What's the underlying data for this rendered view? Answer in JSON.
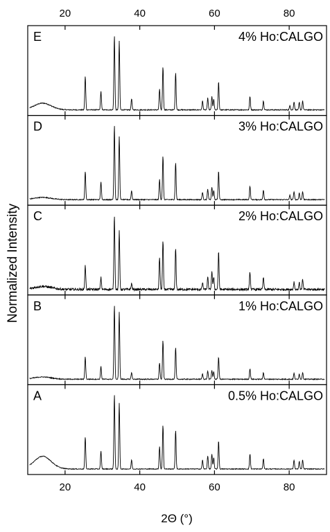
{
  "chart_data": {
    "type": "line",
    "xlabel": "2Θ (°)",
    "ylabel": "Normalized Intensity",
    "xlim": [
      10,
      90
    ],
    "xticks": [
      20,
      40,
      60,
      80
    ],
    "xtick_labels": [
      "20",
      "40",
      "60",
      "80"
    ],
    "grid": false,
    "line_color": "#000000",
    "panels": [
      {
        "letter": "E",
        "label": "4% Ho:CALGO",
        "hump": 0.09,
        "noise": 0.012,
        "peaks": [
          [
            25.4,
            0.45
          ],
          [
            29.6,
            0.25
          ],
          [
            33.2,
            1.0
          ],
          [
            34.5,
            0.92
          ],
          [
            37.8,
            0.15
          ],
          [
            45.3,
            0.28
          ],
          [
            46.2,
            0.58
          ],
          [
            49.6,
            0.5
          ],
          [
            56.8,
            0.12
          ],
          [
            58.2,
            0.16
          ],
          [
            59.3,
            0.18
          ],
          [
            59.8,
            0.14
          ],
          [
            61.1,
            0.38
          ],
          [
            69.5,
            0.18
          ],
          [
            73.1,
            0.12
          ],
          [
            80.2,
            0.06
          ],
          [
            81.3,
            0.11
          ],
          [
            82.7,
            0.1
          ],
          [
            83.6,
            0.12
          ]
        ]
      },
      {
        "letter": "D",
        "label": "3% Ho:CALGO",
        "hump": 0.03,
        "noise": 0.012,
        "peaks": [
          [
            25.4,
            0.38
          ],
          [
            29.6,
            0.24
          ],
          [
            33.2,
            1.0
          ],
          [
            34.5,
            0.85
          ],
          [
            37.8,
            0.12
          ],
          [
            45.3,
            0.27
          ],
          [
            46.2,
            0.58
          ],
          [
            49.6,
            0.5
          ],
          [
            56.8,
            0.1
          ],
          [
            58.2,
            0.14
          ],
          [
            59.3,
            0.17
          ],
          [
            59.8,
            0.12
          ],
          [
            61.1,
            0.38
          ],
          [
            69.5,
            0.18
          ],
          [
            73.1,
            0.13
          ],
          [
            80.2,
            0.06
          ],
          [
            81.3,
            0.11
          ],
          [
            82.7,
            0.09
          ],
          [
            83.6,
            0.11
          ]
        ]
      },
      {
        "letter": "C",
        "label": "2% Ho:CALGO",
        "hump": 0.04,
        "noise": 0.03,
        "peaks": [
          [
            25.4,
            0.32
          ],
          [
            29.6,
            0.16
          ],
          [
            33.2,
            1.0
          ],
          [
            34.5,
            0.78
          ],
          [
            37.8,
            0.08
          ],
          [
            45.3,
            0.43
          ],
          [
            46.2,
            0.65
          ],
          [
            49.6,
            0.55
          ],
          [
            56.8,
            0.09
          ],
          [
            58.2,
            0.16
          ],
          [
            59.3,
            0.24
          ],
          [
            59.8,
            0.17
          ],
          [
            61.1,
            0.5
          ],
          [
            69.5,
            0.23
          ],
          [
            73.1,
            0.16
          ],
          [
            81.3,
            0.1
          ],
          [
            82.7,
            0.09
          ],
          [
            83.6,
            0.13
          ]
        ]
      },
      {
        "letter": "B",
        "label": "1% Ho:CALGO",
        "hump": 0.03,
        "noise": 0.012,
        "peaks": [
          [
            25.4,
            0.3
          ],
          [
            29.6,
            0.17
          ],
          [
            33.2,
            1.0
          ],
          [
            34.5,
            0.9
          ],
          [
            37.8,
            0.09
          ],
          [
            45.3,
            0.22
          ],
          [
            46.2,
            0.52
          ],
          [
            49.6,
            0.42
          ],
          [
            56.8,
            0.07
          ],
          [
            58.2,
            0.11
          ],
          [
            59.3,
            0.12
          ],
          [
            59.8,
            0.1
          ],
          [
            61.1,
            0.3
          ],
          [
            69.5,
            0.14
          ],
          [
            73.1,
            0.09
          ],
          [
            81.3,
            0.08
          ],
          [
            82.7,
            0.07
          ],
          [
            83.6,
            0.09
          ]
        ]
      },
      {
        "letter": "A",
        "label": "0.5% Ho:CALGO",
        "hump": 0.17,
        "noise": 0.01,
        "peaks": [
          [
            25.4,
            0.43
          ],
          [
            29.6,
            0.24
          ],
          [
            33.2,
            1.0
          ],
          [
            34.5,
            0.88
          ],
          [
            37.8,
            0.12
          ],
          [
            45.3,
            0.3
          ],
          [
            46.2,
            0.59
          ],
          [
            49.6,
            0.52
          ],
          [
            56.8,
            0.12
          ],
          [
            58.2,
            0.18
          ],
          [
            59.3,
            0.2
          ],
          [
            59.8,
            0.15
          ],
          [
            61.1,
            0.38
          ],
          [
            69.5,
            0.2
          ],
          [
            73.1,
            0.14
          ],
          [
            81.3,
            0.12
          ],
          [
            82.7,
            0.1
          ],
          [
            83.6,
            0.12
          ]
        ]
      }
    ]
  }
}
